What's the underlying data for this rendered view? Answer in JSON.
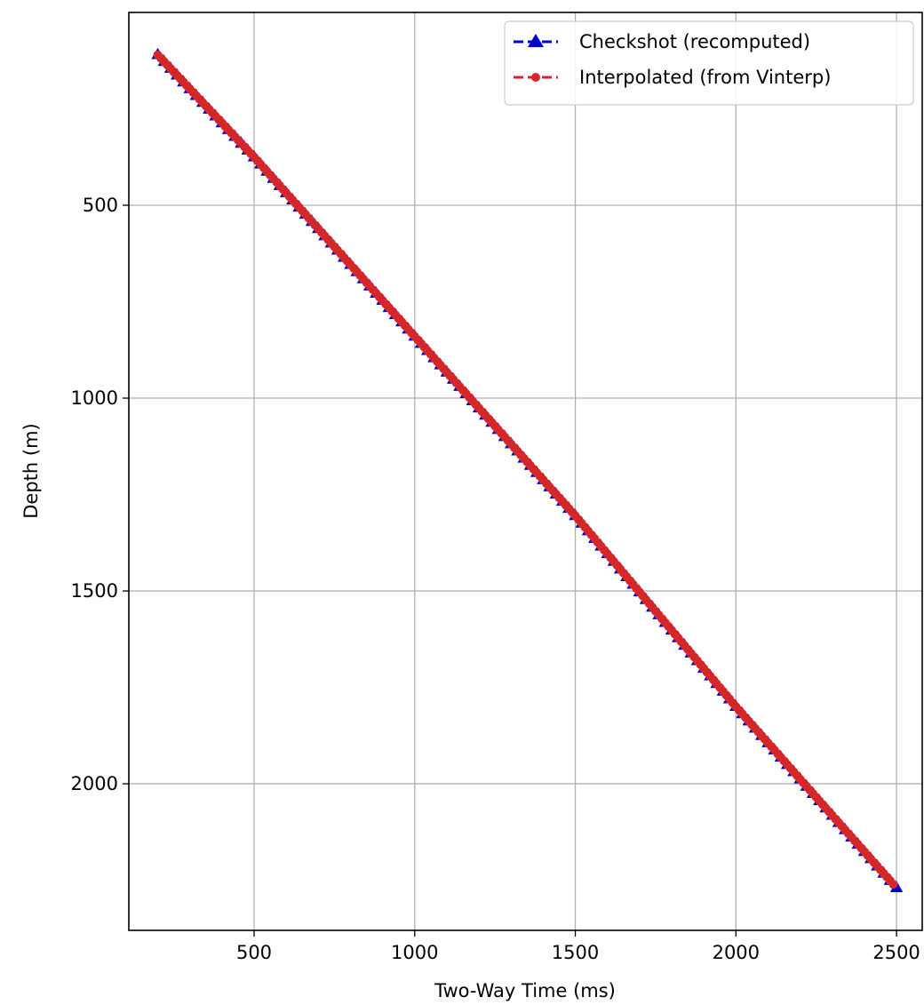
{
  "chart_data": {
    "type": "line",
    "title": "",
    "xlabel": "Two-Way Time (ms)",
    "ylabel": "Depth (m)",
    "xlim": [
      110,
      2580
    ],
    "ylim": [
      0,
      2380
    ],
    "y_inverted": true,
    "grid": true,
    "legend_position": "top-right",
    "xticks": [
      500,
      1000,
      1500,
      2000,
      2500
    ],
    "yticks": [
      500,
      1000,
      1500,
      2000
    ],
    "series": [
      {
        "name": "Checkshot (recomputed)",
        "color": "#0000cc",
        "marker": "triangle-up",
        "linestyle": "dashed",
        "x_start": 200,
        "x_end": 2500,
        "x_step": 20,
        "anchors": [
          [
            200,
            110
          ],
          [
            500,
            375
          ],
          [
            1000,
            840
          ],
          [
            1500,
            1305
          ],
          [
            2000,
            1800
          ],
          [
            2500,
            2270
          ]
        ]
      },
      {
        "name": "Interpolated (from Vinterp)",
        "color": "#d62728",
        "marker": "circle",
        "linestyle": "dashed",
        "x_start": 200,
        "x_end": 2490,
        "x_step": 10,
        "anchors": [
          [
            200,
            110
          ],
          [
            500,
            375
          ],
          [
            1000,
            840
          ],
          [
            1500,
            1305
          ],
          [
            2000,
            1800
          ],
          [
            2500,
            2270
          ]
        ]
      }
    ]
  }
}
